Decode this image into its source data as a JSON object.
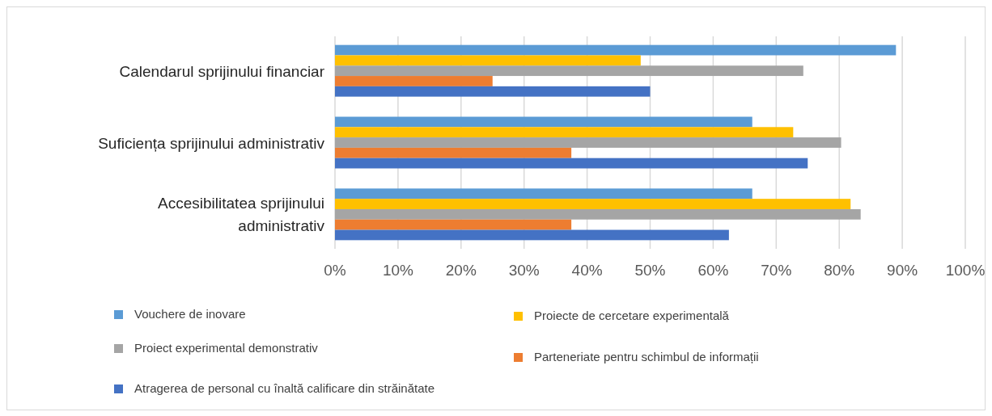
{
  "chart_data": {
    "type": "bar",
    "orientation": "horizontal",
    "categories": [
      "Calendarul sprijinului financiar",
      "Suficiența sprijinului administrativ",
      "Accesibilitatea sprijinului administrativ"
    ],
    "series": [
      {
        "name": "Vouchere de inovare",
        "color": "#5b9bd5",
        "values": [
          89,
          66.2,
          66.2
        ]
      },
      {
        "name": "Proiecte de cercetare experimentală",
        "color": "#ffc000",
        "values": [
          48.5,
          72.7,
          81.8
        ]
      },
      {
        "name": "Proiect experimental demonstrativ",
        "color": "#a5a5a5",
        "values": [
          74.3,
          80.3,
          83.4
        ]
      },
      {
        "name": "Parteneriate pentru schimbul de informații",
        "color": "#ed7d31",
        "values": [
          25,
          37.5,
          37.5
        ]
      },
      {
        "name": "Atragerea de personal cu înaltă calificare din străinătate",
        "color": "#4472c4",
        "values": [
          50,
          75,
          62.5
        ]
      }
    ],
    "xlim": [
      0,
      100
    ],
    "xticks": [
      {
        "value": 0,
        "label": "0%"
      },
      {
        "value": 10,
        "label": "10%"
      },
      {
        "value": 20,
        "label": "20%"
      },
      {
        "value": 30,
        "label": "30%"
      },
      {
        "value": 40,
        "label": "40%"
      },
      {
        "value": 50,
        "label": "50%"
      },
      {
        "value": 60,
        "label": "60%"
      },
      {
        "value": 70,
        "label": "70%"
      },
      {
        "value": 80,
        "label": "80%"
      },
      {
        "value": 90,
        "label": "90%"
      },
      {
        "value": 100,
        "label": "100%"
      }
    ],
    "grid": "x",
    "legend": "bottom"
  }
}
